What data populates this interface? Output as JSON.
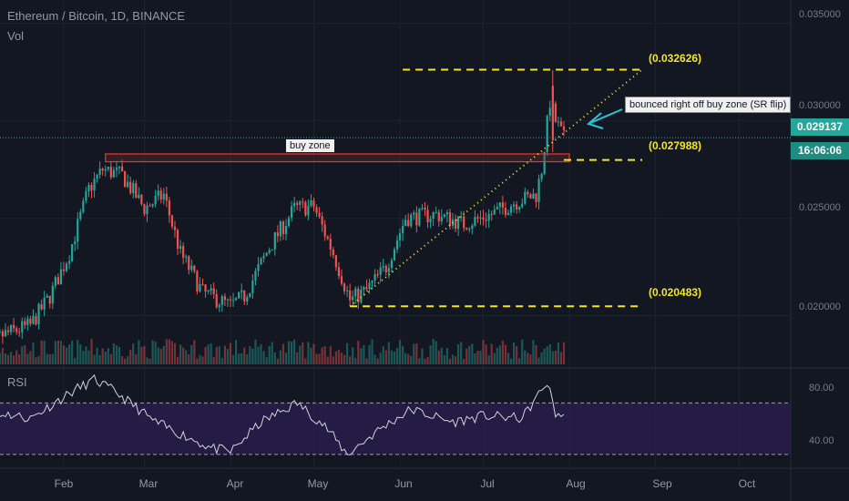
{
  "header": {
    "symbol_line": "Ethereum / Bitcoin, 1D, BINANCE",
    "volume_label": "Vol",
    "rsi_label": "RSI"
  },
  "price_axis": {
    "ticks": [
      "0.035000",
      "0.030000",
      "0.025000",
      "0.020000"
    ],
    "last_price": "0.029137",
    "countdown": "16:06:06",
    "tag_colors": {
      "price": "#26a69a",
      "countdown": "#26a69a"
    }
  },
  "rsi_axis": {
    "ticks": [
      "80.00",
      "40.00"
    ]
  },
  "time_axis": {
    "ticks": [
      "Feb",
      "Mar",
      "Apr",
      "May",
      "Jun",
      "Jul",
      "Aug",
      "Sep",
      "Oct"
    ]
  },
  "annotations": {
    "buy_zone": "buy zone",
    "callout": "bounced right off buy zone (SR flip)",
    "levels": [
      "(0.032626)",
      "(0.027988)",
      "(0.020483)"
    ]
  },
  "colors": {
    "up": "#26a69a",
    "down": "#ef5350",
    "level": "#f5e625",
    "callout": "#26c6da",
    "rsi_band": "#2a1e4f"
  },
  "chart_data": {
    "type": "candlestick",
    "title": "Ethereum / Bitcoin, 1D, BINANCE",
    "y_range": [
      0.0175,
      0.0362
    ],
    "levels": [
      0.032626,
      0.027988,
      0.020483
    ],
    "buy_zone": [
      0.0279,
      0.0283
    ],
    "last_price": 0.029137,
    "close_path": [
      {
        "x": "2020-01-01",
        "y": 0.018
      },
      {
        "x": "2020-01-10",
        "y": 0.019
      },
      {
        "x": "2020-01-20",
        "y": 0.0195
      },
      {
        "x": "2020-01-27",
        "y": 0.021
      },
      {
        "x": "2020-02-03",
        "y": 0.0232
      },
      {
        "x": "2020-02-10",
        "y": 0.0265
      },
      {
        "x": "2020-02-15",
        "y": 0.0275
      },
      {
        "x": "2020-02-22",
        "y": 0.0272
      },
      {
        "x": "2020-03-01",
        "y": 0.0255
      },
      {
        "x": "2020-03-08",
        "y": 0.0262
      },
      {
        "x": "2020-03-14",
        "y": 0.0232
      },
      {
        "x": "2020-03-22",
        "y": 0.0212
      },
      {
        "x": "2020-04-01",
        "y": 0.0205
      },
      {
        "x": "2020-04-06",
        "y": 0.021
      },
      {
        "x": "2020-04-15",
        "y": 0.0235
      },
      {
        "x": "2020-04-24",
        "y": 0.0255
      },
      {
        "x": "2020-05-01",
        "y": 0.0256
      },
      {
        "x": "2020-05-08",
        "y": 0.0232
      },
      {
        "x": "2020-05-14",
        "y": 0.0208
      },
      {
        "x": "2020-05-20",
        "y": 0.0213
      },
      {
        "x": "2020-05-27",
        "y": 0.0225
      },
      {
        "x": "2020-06-03",
        "y": 0.025
      },
      {
        "x": "2020-06-14",
        "y": 0.0252
      },
      {
        "x": "2020-06-24",
        "y": 0.0247
      },
      {
        "x": "2020-07-04",
        "y": 0.0252
      },
      {
        "x": "2020-07-12",
        "y": 0.0258
      },
      {
        "x": "2020-07-20",
        "y": 0.0262
      },
      {
        "x": "2020-07-22",
        "y": 0.0275
      },
      {
        "x": "2020-07-25",
        "y": 0.031
      },
      {
        "x": "2020-07-27",
        "y": 0.03
      },
      {
        "x": "2020-07-30",
        "y": 0.0291
      }
    ],
    "rsi": {
      "range": [
        20,
        95
      ],
      "band": [
        30,
        70
      ],
      "ticks": [
        80,
        40
      ],
      "path": [
        {
          "x": "2020-01-01",
          "y": 40
        },
        {
          "x": "2020-01-10",
          "y": 62
        },
        {
          "x": "2020-01-20",
          "y": 58
        },
        {
          "x": "2020-02-05",
          "y": 80
        },
        {
          "x": "2020-02-12",
          "y": 88
        },
        {
          "x": "2020-02-20",
          "y": 78
        },
        {
          "x": "2020-03-05",
          "y": 55
        },
        {
          "x": "2020-03-15",
          "y": 45
        },
        {
          "x": "2020-03-25",
          "y": 35
        },
        {
          "x": "2020-04-01",
          "y": 32
        },
        {
          "x": "2020-04-12",
          "y": 55
        },
        {
          "x": "2020-04-25",
          "y": 70
        },
        {
          "x": "2020-05-05",
          "y": 52
        },
        {
          "x": "2020-05-13",
          "y": 30
        },
        {
          "x": "2020-05-25",
          "y": 50
        },
        {
          "x": "2020-06-05",
          "y": 65
        },
        {
          "x": "2020-06-20",
          "y": 55
        },
        {
          "x": "2020-07-01",
          "y": 60
        },
        {
          "x": "2020-07-15",
          "y": 58
        },
        {
          "x": "2020-07-24",
          "y": 86
        },
        {
          "x": "2020-07-27",
          "y": 62
        },
        {
          "x": "2020-07-30",
          "y": 60
        }
      ]
    }
  }
}
